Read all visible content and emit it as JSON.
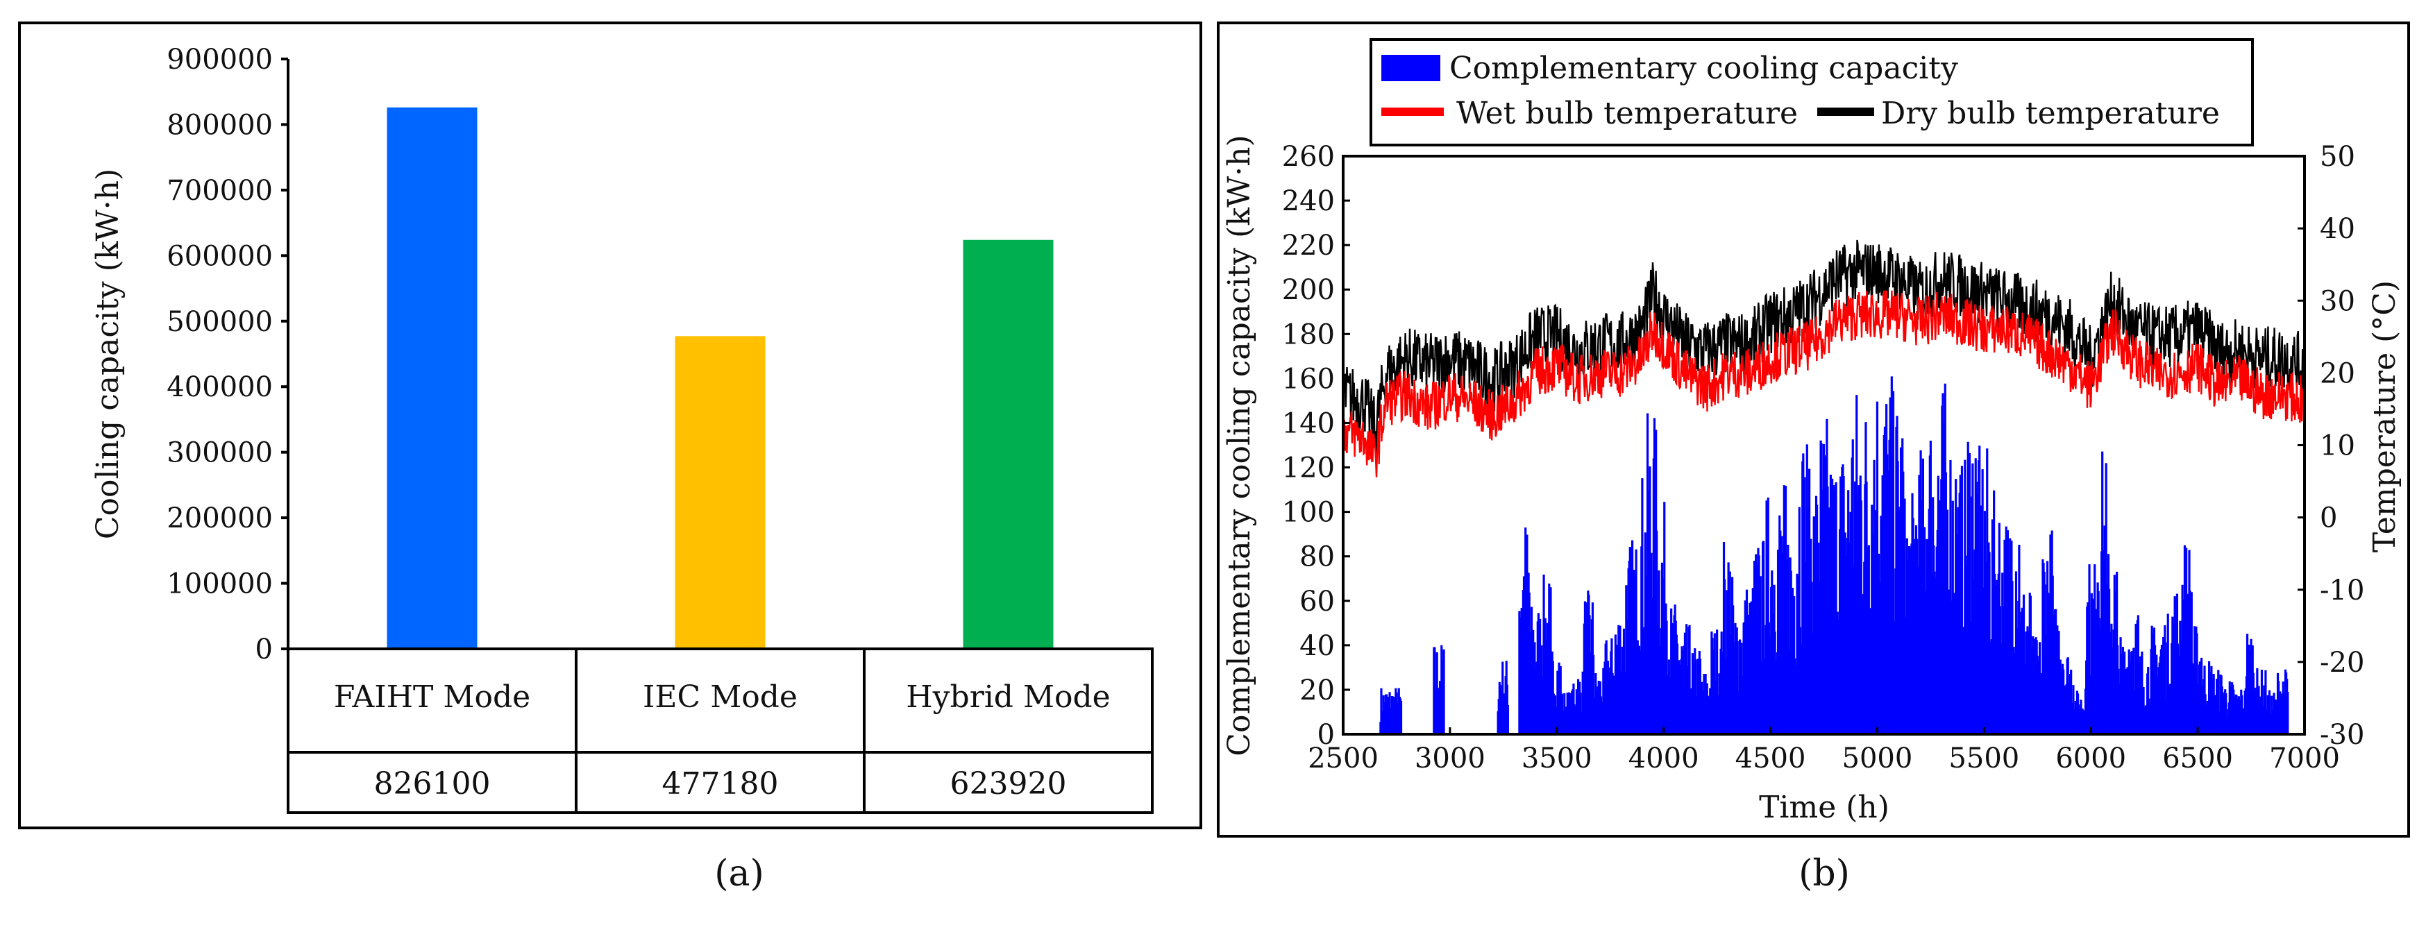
{
  "chart_data": [
    {
      "type": "bar",
      "title": "",
      "xlabel": "",
      "ylabel": "Cooling capacity (kW·h)",
      "ylim": [
        0,
        900000
      ],
      "yticks": [
        0,
        100000,
        200000,
        300000,
        400000,
        500000,
        600000,
        700000,
        800000,
        900000
      ],
      "categories": [
        "FAIHT Mode",
        "IEC Mode",
        "Hybrid Mode"
      ],
      "values": [
        826100,
        477180,
        623920
      ],
      "value_labels": [
        "826100",
        "477180",
        "623920"
      ],
      "bar_colors": [
        "#0066ff",
        "#ffc000",
        "#00b050"
      ],
      "grid": false,
      "caption": "(a)"
    },
    {
      "type": "area",
      "xlabel": "Time (h)",
      "ylabel_left": "Complementary cooling capacity (kW·h)",
      "ylabel_right": "Temperature (°C)",
      "xlim": [
        2500,
        7000
      ],
      "ylim_left": [
        0,
        260
      ],
      "ylim_right": [
        -30,
        50
      ],
      "xticks": [
        2500,
        3000,
        3500,
        4000,
        4500,
        5000,
        5500,
        6000,
        6500,
        7000
      ],
      "yticks_left": [
        0,
        20,
        40,
        60,
        80,
        100,
        120,
        140,
        160,
        180,
        200,
        220,
        240,
        260
      ],
      "yticks_right": [
        -30,
        -20,
        -10,
        0,
        10,
        20,
        30,
        40,
        50
      ],
      "legend_position": "top",
      "grid": false,
      "caption": "(b)",
      "series": [
        {
          "name": "Complementary cooling capacity",
          "kind": "bar-area",
          "axis": "left",
          "color": "#0000ff",
          "x": [
            2700,
            2750,
            2950,
            3250,
            3350,
            3400,
            3450,
            3500,
            3550,
            3600,
            3650,
            3700,
            3750,
            3800,
            3850,
            3900,
            3950,
            4000,
            4050,
            4100,
            4150,
            4200,
            4250,
            4300,
            4350,
            4400,
            4450,
            4500,
            4550,
            4600,
            4650,
            4700,
            4750,
            4800,
            4850,
            4900,
            4950,
            5000,
            5050,
            5100,
            5150,
            5200,
            5250,
            5300,
            5350,
            5400,
            5450,
            5500,
            5550,
            5600,
            5650,
            5700,
            5750,
            5800,
            5850,
            5900,
            5950,
            6000,
            6050,
            6100,
            6150,
            6200,
            6250,
            6300,
            6350,
            6400,
            6450,
            6500,
            6550,
            6600,
            6650,
            6700,
            6750,
            6800,
            6850,
            6900
          ],
          "values": [
            22,
            22,
            42,
            35,
            100,
            60,
            72,
            40,
            20,
            30,
            65,
            30,
            45,
            60,
            90,
            120,
            145,
            105,
            60,
            50,
            40,
            30,
            50,
            90,
            60,
            70,
            90,
            110,
            115,
            100,
            140,
            120,
            145,
            130,
            135,
            160,
            155,
            170,
            165,
            155,
            110,
            130,
            150,
            160,
            140,
            125,
            150,
            130,
            110,
            100,
            115,
            70,
            45,
            95,
            60,
            40,
            20,
            80,
            130,
            85,
            45,
            60,
            40,
            50,
            55,
            70,
            90,
            50,
            35,
            30,
            25,
            22,
            50,
            30,
            20,
            30
          ]
        },
        {
          "name": "Wet bulb temperature",
          "kind": "line",
          "axis": "right",
          "color": "#ff0000",
          "x": [
            2500,
            2600,
            2650,
            2700,
            2800,
            2900,
            3000,
            3100,
            3200,
            3300,
            3400,
            3500,
            3600,
            3700,
            3800,
            3900,
            3950,
            4000,
            4100,
            4200,
            4300,
            4400,
            4500,
            4600,
            4700,
            4800,
            4900,
            5000,
            5100,
            5200,
            5300,
            5400,
            5500,
            5600,
            5700,
            5800,
            5900,
            6000,
            6050,
            6100,
            6200,
            6300,
            6400,
            6500,
            6600,
            6700,
            6800,
            6900,
            7000
          ],
          "values": [
            12,
            11,
            8,
            16,
            17,
            15,
            17,
            16,
            14,
            16,
            20,
            21,
            19,
            20,
            20,
            22,
            26,
            24,
            20,
            18,
            20,
            20,
            22,
            23,
            24,
            27,
            28,
            28,
            28,
            27,
            28,
            27,
            26,
            26,
            25,
            23,
            21,
            18,
            22,
            26,
            22,
            20,
            20,
            21,
            18,
            19,
            17,
            17,
            16
          ]
        },
        {
          "name": "Dry bulb temperature",
          "kind": "line",
          "axis": "right",
          "color": "#000000",
          "x": [
            2500,
            2600,
            2650,
            2700,
            2800,
            2900,
            3000,
            3100,
            3200,
            3300,
            3400,
            3500,
            3600,
            3700,
            3800,
            3900,
            3950,
            4000,
            4100,
            4200,
            4300,
            4400,
            4500,
            4600,
            4700,
            4800,
            4900,
            5000,
            5100,
            5200,
            5300,
            5400,
            5500,
            5600,
            5700,
            5800,
            5900,
            6000,
            6050,
            6100,
            6200,
            6300,
            6400,
            6500,
            6600,
            6700,
            6800,
            6900,
            7000
          ],
          "values": [
            17,
            16,
            12,
            20,
            22,
            21,
            22,
            21,
            19,
            21,
            25,
            25,
            23,
            24,
            24,
            26,
            31,
            28,
            24,
            23,
            24,
            24,
            27,
            28,
            30,
            33,
            34,
            34,
            33,
            31,
            33,
            32,
            31,
            30,
            29,
            28,
            26,
            22,
            26,
            30,
            26,
            25,
            25,
            26,
            23,
            23,
            22,
            22,
            21
          ]
        }
      ]
    }
  ]
}
